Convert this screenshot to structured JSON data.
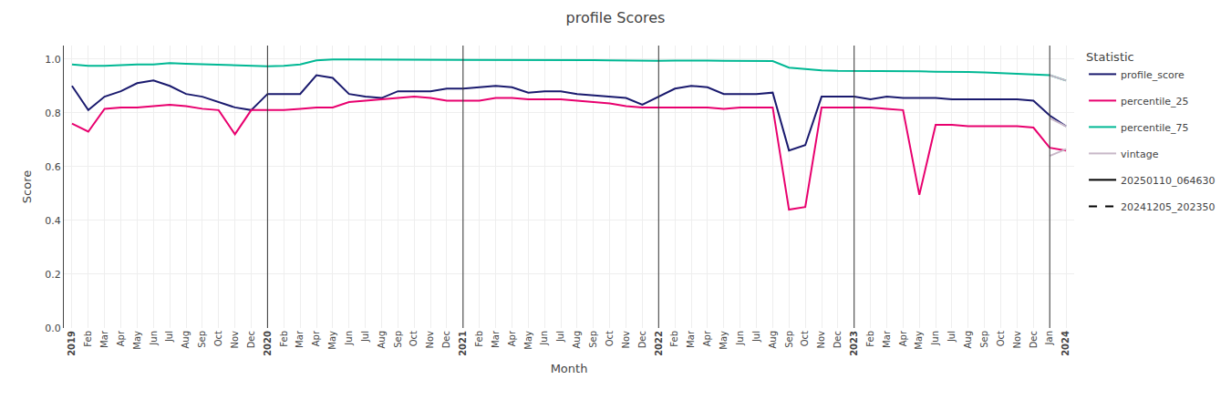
{
  "chart_data": {
    "type": "line",
    "title": "profile Scores",
    "xlabel": "Month",
    "ylabel": "Score",
    "legend_title": "Statistic",
    "legend": "upper right",
    "grid": true,
    "ylim": [
      0.0,
      1.05
    ],
    "yticks": [
      {
        "value": 0.0,
        "label": "0.0"
      },
      0.2,
      0.4,
      0.6,
      0.8,
      {
        "value": 1.0,
        "label": "1.0"
      }
    ],
    "categories": [
      "2019",
      "Feb",
      "Mar",
      "Apr",
      "May",
      "Jun",
      "Jul",
      "Aug",
      "Sep",
      "Oct",
      "Nov",
      "Dec",
      "2020",
      "Feb",
      "Mar",
      "Apr",
      "May",
      "Jun",
      "Jul",
      "Aug",
      "Sep",
      "Oct",
      "Nov",
      "Dec",
      "2021",
      "Feb",
      "Mar",
      "Apr",
      "May",
      "Jun",
      "Jul",
      "Aug",
      "Sep",
      "Oct",
      "Nov",
      "Dec",
      "2022",
      "Feb",
      "Mar",
      "Apr",
      "May",
      "Jun",
      "Jul",
      "Aug",
      "Sep",
      "Oct",
      "Nov",
      "Dec",
      "2023",
      "Feb",
      "Mar",
      "Apr",
      "May",
      "Jun",
      "Jul",
      "Aug",
      "Sep",
      "Oct",
      "Nov",
      "Dec",
      "Jan",
      "2024"
    ],
    "vlines": {
      "x": [
        12,
        24,
        36,
        48,
        60
      ],
      "color": "#333333"
    },
    "series": [
      {
        "name": "profile_score",
        "color": "#1a1a6e",
        "line_style": "solid",
        "values": [
          0.9,
          0.81,
          0.86,
          0.88,
          0.91,
          0.92,
          0.9,
          0.87,
          0.86,
          0.84,
          0.82,
          0.81,
          0.87,
          0.87,
          0.87,
          0.94,
          0.93,
          0.87,
          0.86,
          0.855,
          0.88,
          0.88,
          0.88,
          0.89,
          0.89,
          0.895,
          0.9,
          0.895,
          0.875,
          0.88,
          0.88,
          0.87,
          0.865,
          0.86,
          0.855,
          0.83,
          0.86,
          0.89,
          0.9,
          0.895,
          0.87,
          0.87,
          0.87,
          0.875,
          0.66,
          0.68,
          0.86,
          0.86,
          0.86,
          0.85,
          0.86,
          0.855,
          0.855,
          0.855,
          0.85,
          0.85,
          0.85,
          0.85,
          0.85,
          0.845,
          0.79,
          0.75
        ]
      },
      {
        "name": "percentile_25",
        "color": "#e8006e",
        "line_style": "solid",
        "values": [
          0.76,
          0.73,
          0.815,
          0.82,
          0.82,
          0.825,
          0.83,
          0.825,
          0.815,
          0.81,
          0.72,
          0.81,
          0.81,
          0.81,
          0.815,
          0.82,
          0.82,
          0.84,
          0.845,
          0.85,
          0.855,
          0.86,
          0.855,
          0.845,
          0.845,
          0.845,
          0.855,
          0.855,
          0.85,
          0.85,
          0.85,
          0.845,
          0.84,
          0.835,
          0.825,
          0.82,
          0.82,
          0.82,
          0.82,
          0.82,
          0.815,
          0.82,
          0.82,
          0.82,
          0.44,
          0.45,
          0.82,
          0.82,
          0.82,
          0.82,
          0.815,
          0.81,
          0.495,
          0.755,
          0.755,
          0.75,
          0.75,
          0.75,
          0.75,
          0.745,
          0.67,
          0.66
        ]
      },
      {
        "name": "percentile_75",
        "color": "#00b894",
        "line_style": "solid",
        "values": [
          0.98,
          0.975,
          0.975,
          0.978,
          0.98,
          0.98,
          0.985,
          0.982,
          0.98,
          0.978,
          0.978,
          0.975,
          0.973,
          0.975,
          0.98,
          0.995,
          0.998,
          0.998,
          0.998,
          0.998,
          0.998,
          0.997,
          0.997,
          0.997,
          0.998,
          0.998,
          0.997,
          0.997,
          0.998,
          0.998,
          0.997,
          0.997,
          0.996,
          0.995,
          0.994,
          0.993,
          0.993,
          0.994,
          0.995,
          0.994,
          0.993,
          0.993,
          0.993,
          0.992,
          0.968,
          0.962,
          0.958,
          0.956,
          0.956,
          0.955,
          0.955,
          0.954,
          0.954,
          0.953,
          0.953,
          0.952,
          0.95,
          0.948,
          0.946,
          0.944,
          0.94,
          0.92
        ]
      },
      {
        "name": "vintage",
        "color": "#c8b8c8",
        "line_style": "solid",
        "values": [
          null,
          null,
          null,
          null,
          null,
          null,
          null,
          null,
          null,
          null,
          null,
          null,
          null,
          null,
          null,
          null,
          null,
          null,
          null,
          null,
          null,
          null,
          null,
          null,
          null,
          null,
          null,
          null,
          null,
          null,
          null,
          null,
          null,
          null,
          null,
          null,
          null,
          null,
          null,
          null,
          null,
          null,
          null,
          null,
          null,
          null,
          null,
          null,
          null,
          null,
          null,
          null,
          null,
          null,
          null,
          null,
          null,
          null,
          null,
          null,
          0.94,
          0.92
        ]
      },
      {
        "name": "vintage",
        "color": "#c8b8c8",
        "line_style": "solid",
        "values": [
          null,
          null,
          null,
          null,
          null,
          null,
          null,
          null,
          null,
          null,
          null,
          null,
          null,
          null,
          null,
          null,
          null,
          null,
          null,
          null,
          null,
          null,
          null,
          null,
          null,
          null,
          null,
          null,
          null,
          null,
          null,
          null,
          null,
          null,
          null,
          null,
          null,
          null,
          null,
          null,
          null,
          null,
          null,
          null,
          null,
          null,
          null,
          null,
          null,
          null,
          null,
          null,
          null,
          null,
          null,
          null,
          null,
          null,
          null,
          null,
          0.78,
          0.75
        ]
      },
      {
        "name": "vintage",
        "color": "#c8b8c8",
        "line_style": "solid",
        "values": [
          null,
          null,
          null,
          null,
          null,
          null,
          null,
          null,
          null,
          null,
          null,
          null,
          null,
          null,
          null,
          null,
          null,
          null,
          null,
          null,
          null,
          null,
          null,
          null,
          null,
          null,
          null,
          null,
          null,
          null,
          null,
          null,
          null,
          null,
          null,
          null,
          null,
          null,
          null,
          null,
          null,
          null,
          null,
          null,
          null,
          null,
          null,
          null,
          null,
          null,
          null,
          null,
          null,
          null,
          null,
          null,
          null,
          null,
          null,
          null,
          0.64,
          0.665
        ]
      },
      {
        "name": "20250110_064630",
        "color": "#000000",
        "line_style": "solid",
        "values": [
          null,
          null,
          null,
          null,
          null,
          null,
          null,
          null,
          null,
          null,
          null,
          null,
          null,
          null,
          null,
          null,
          null,
          null,
          null,
          null,
          null,
          null,
          null,
          null,
          null,
          null,
          null,
          null,
          null,
          null,
          null,
          null,
          null,
          null,
          null,
          null,
          null,
          null,
          null,
          null,
          null,
          null,
          null,
          null,
          null,
          null,
          null,
          null,
          null,
          null,
          null,
          null,
          null,
          null,
          null,
          null,
          null,
          null,
          null,
          null,
          null,
          null
        ]
      },
      {
        "name": "20241205_202350",
        "color": "#000000",
        "line_style": "dashed",
        "values": [
          null,
          null,
          null,
          null,
          null,
          null,
          null,
          null,
          null,
          null,
          null,
          null,
          null,
          null,
          null,
          null,
          null,
          null,
          null,
          null,
          null,
          null,
          null,
          null,
          null,
          null,
          null,
          null,
          null,
          null,
          null,
          null,
          null,
          null,
          null,
          null,
          null,
          null,
          null,
          null,
          null,
          null,
          null,
          null,
          null,
          null,
          null,
          null,
          null,
          null,
          null,
          null,
          null,
          null,
          null,
          null,
          null,
          null,
          null,
          null,
          null,
          null
        ]
      }
    ]
  }
}
